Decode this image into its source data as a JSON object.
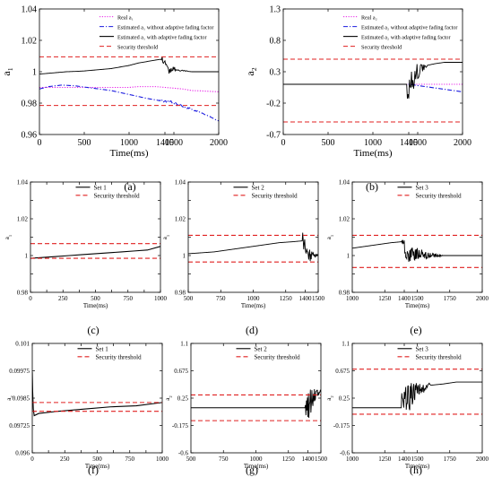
{
  "chart_data": [
    {
      "id": "a",
      "type": "line",
      "caption": "(a)",
      "xlabel": "Time(ms)",
      "ylabel": "a",
      "ylabel_sub": "1",
      "xlim": [
        0,
        2000
      ],
      "ylim": [
        0.96,
        1.04
      ],
      "xticks": [
        0,
        500,
        1000,
        1400,
        1500,
        2000
      ],
      "xtick_labels": [
        "0",
        "500",
        "1000",
        "1400",
        "1500",
        "2000"
      ],
      "yticks": [
        0.96,
        0.98,
        1,
        1.02,
        1.04
      ],
      "ytick_labels": [
        "0.96",
        "0.98",
        "1",
        "1.02",
        "1.04"
      ],
      "legend_position": "top-right",
      "series": [
        {
          "name": "Real a₁",
          "color": "#e81ee8",
          "style": "dotted",
          "x": [
            0,
            1000,
            1100,
            1200,
            1300,
            1400,
            1500,
            1600,
            1700,
            1800,
            1900,
            2000
          ],
          "y": [
            0.99,
            0.99,
            0.9905,
            0.9905,
            0.9905,
            0.99,
            0.9895,
            0.989,
            0.988,
            0.9878,
            0.9875,
            0.9872
          ]
        },
        {
          "name": "Estimated a₁ without adaptive fading factor",
          "color": "#1a1adf",
          "style": "dashdot",
          "noise": 0.001,
          "noise_from": 1350,
          "x": [
            0,
            100,
            250,
            400,
            600,
            800,
            1000,
            1200,
            1400,
            1450,
            1500,
            1600,
            1700,
            1800,
            1900,
            2000
          ],
          "y": [
            0.989,
            0.9905,
            0.9915,
            0.991,
            0.9895,
            0.988,
            0.9855,
            0.983,
            0.981,
            0.9815,
            0.98,
            0.978,
            0.976,
            0.974,
            0.9715,
            0.9685
          ]
        },
        {
          "name": "Estimated a₁ with adaptive fading factor",
          "color": "#000000",
          "style": "solid",
          "noise": 0.0025,
          "noise_from": 1360,
          "noise_to": 1650,
          "x": [
            0,
            100,
            200,
            300,
            400,
            500,
            600,
            700,
            800,
            900,
            1000,
            1100,
            1200,
            1300,
            1360,
            1400,
            1440,
            1500,
            1600,
            1700,
            1800,
            1900,
            2000
          ],
          "y": [
            0.9985,
            0.999,
            0.9995,
            1.0,
            1.0002,
            1.0005,
            1.001,
            1.0015,
            1.002,
            1.003,
            1.004,
            1.0055,
            1.0065,
            1.0075,
            1.008,
            1.0075,
            1.0,
            1.002,
            1.0005,
            1.0,
            1.0,
            1.0,
            1.0
          ]
        },
        {
          "name": "Security threshold",
          "color": "#e02020",
          "style": "dashed",
          "x": [
            0,
            2000
          ],
          "y": [
            1.0095,
            1.0095
          ]
        },
        {
          "name": "",
          "color": "#e02020",
          "style": "dashed",
          "x": [
            0,
            2000
          ],
          "y": [
            0.9785,
            0.9785
          ]
        }
      ]
    },
    {
      "id": "b",
      "type": "line",
      "caption": "(b)",
      "xlabel": "Time(ms)",
      "ylabel": "a",
      "ylabel_sub": "2",
      "xlim": [
        0,
        2000
      ],
      "ylim": [
        -0.7,
        1.3
      ],
      "xticks": [
        0,
        500,
        1000,
        1400,
        1500,
        2000
      ],
      "xtick_labels": [
        "0",
        "500",
        "1000",
        "1400",
        "1500",
        "2000"
      ],
      "yticks": [
        -0.7,
        -0.2,
        0.3,
        0.8,
        1.3
      ],
      "ytick_labels": [
        "-0.7",
        "-0.2",
        "0.3",
        "0.8",
        "1.3"
      ],
      "legend_position": "top-right",
      "series": [
        {
          "name": "Real a₂",
          "color": "#e81ee8",
          "style": "dotted",
          "x": [
            0,
            2000
          ],
          "y": [
            0.1,
            0.1
          ]
        },
        {
          "name": "Estimated a₂ without adaptive fading factor",
          "color": "#1a1adf",
          "style": "dashdot",
          "x": [
            0,
            1000,
            1400,
            1500,
            1600,
            1700,
            1800,
            1900,
            2000
          ],
          "y": [
            0.1,
            0.1,
            0.1,
            0.08,
            0.06,
            0.04,
            0.02,
            0.0,
            -0.02
          ]
        },
        {
          "name": "Estimated a₂ with adaptive fading factor",
          "color": "#000000",
          "style": "solid",
          "noise": 0.3,
          "noise_from": 1380,
          "noise_to": 1600,
          "x": [
            0,
            1380,
            1450,
            1500,
            1550,
            1600,
            1700,
            1800,
            2000
          ],
          "y": [
            0.1,
            0.1,
            0.2,
            0.3,
            0.35,
            0.4,
            0.43,
            0.45,
            0.45
          ]
        },
        {
          "name": "Security threshold",
          "color": "#e02020",
          "style": "dashed",
          "x": [
            0,
            2000
          ],
          "y": [
            0.5,
            0.5
          ]
        },
        {
          "name": "",
          "color": "#e02020",
          "style": "dashed",
          "x": [
            0,
            2000
          ],
          "y": [
            -0.5,
            -0.5
          ]
        }
      ]
    },
    {
      "id": "c",
      "type": "line",
      "caption": "(c)",
      "xlabel": "Time(ms)",
      "ylabel": "a",
      "ylabel_sub": "1",
      "xlim": [
        0,
        1000
      ],
      "ylim": [
        0.98,
        1.04
      ],
      "xticks": [
        0,
        125,
        250,
        375,
        500,
        625,
        750,
        875,
        1000
      ],
      "xtick_labels": [
        "0",
        "",
        "250",
        "",
        "500",
        "",
        "750",
        "",
        "1000"
      ],
      "yticks": [
        0.98,
        0.99,
        1,
        1.01,
        1.02,
        1.03,
        1.04
      ],
      "ytick_labels": [
        "0.98",
        "",
        "1",
        "",
        "1.02",
        "",
        "1.04"
      ],
      "legend_position": "top-center",
      "series": [
        {
          "name": "Set 1",
          "color": "#000000",
          "style": "solid",
          "x": [
            0,
            100,
            200,
            300,
            400,
            500,
            600,
            700,
            800,
            900,
            1000
          ],
          "y": [
            0.9985,
            0.999,
            0.9995,
            1.0,
            1.0005,
            1.001,
            1.0015,
            1.002,
            1.0025,
            1.003,
            1.005
          ]
        },
        {
          "name": "Security threshold",
          "color": "#e02020",
          "style": "dashed",
          "x": [
            0,
            1000
          ],
          "y": [
            1.0065,
            1.0065
          ]
        },
        {
          "name": "",
          "color": "#e02020",
          "style": "dashed",
          "x": [
            0,
            1000
          ],
          "y": [
            0.9985,
            0.9985
          ]
        }
      ]
    },
    {
      "id": "d",
      "type": "line",
      "caption": "(d)",
      "xlabel": "Time(ms)",
      "ylabel": "a",
      "ylabel_sub": "1",
      "xlim": [
        500,
        1500
      ],
      "ylim": [
        0.98,
        1.04
      ],
      "xticks": [
        500,
        750,
        1000,
        1250,
        1400,
        1500
      ],
      "xtick_labels": [
        "500",
        "750",
        "1000",
        "1250",
        "1400",
        "1500"
      ],
      "yticks": [
        0.98,
        0.99,
        1,
        1.01,
        1.02,
        1.03,
        1.04
      ],
      "ytick_labels": [
        "0.98",
        "",
        "1",
        "",
        "1.02",
        "",
        "1.04"
      ],
      "legend_position": "top-center",
      "series": [
        {
          "name": "Set 2",
          "color": "#000000",
          "style": "solid",
          "noise": 0.006,
          "noise_from": 1380,
          "noise_to": 1500,
          "x": [
            500,
            600,
            700,
            800,
            900,
            1000,
            1100,
            1200,
            1300,
            1380,
            1420,
            1460,
            1500
          ],
          "y": [
            1.001,
            1.0015,
            1.002,
            1.003,
            1.004,
            1.005,
            1.006,
            1.007,
            1.0075,
            1.008,
            1.0,
            1.0,
            1.0
          ]
        },
        {
          "name": "Security threshold",
          "color": "#e02020",
          "style": "dashed",
          "x": [
            500,
            1500
          ],
          "y": [
            1.011,
            1.011
          ]
        },
        {
          "name": "",
          "color": "#e02020",
          "style": "dashed",
          "x": [
            500,
            1500
          ],
          "y": [
            0.9965,
            0.9965
          ]
        }
      ]
    },
    {
      "id": "e",
      "type": "line",
      "caption": "(e)",
      "xlabel": "Time(ms)",
      "ylabel": "a",
      "ylabel_sub": "1",
      "xlim": [
        1000,
        2000
      ],
      "ylim": [
        0.98,
        1.04
      ],
      "xticks": [
        1000,
        1250,
        1400,
        1500,
        1750,
        2000
      ],
      "xtick_labels": [
        "1000",
        "1250",
        "1400",
        "1500",
        "1750",
        "2000"
      ],
      "yticks": [
        0.98,
        0.99,
        1,
        1.01,
        1.02,
        1.03,
        1.04
      ],
      "ytick_labels": [
        "0.98",
        "",
        "1",
        "",
        "1.02",
        "",
        "1.04"
      ],
      "legend_position": "top-center",
      "series": [
        {
          "name": "Set 3",
          "color": "#000000",
          "style": "solid",
          "noise": 0.005,
          "noise_from": 1380,
          "noise_to": 1700,
          "x": [
            1000,
            1100,
            1200,
            1300,
            1380,
            1420,
            1500,
            1600,
            1700,
            1800,
            2000
          ],
          "y": [
            1.004,
            1.005,
            1.006,
            1.007,
            1.0075,
            1.0,
            1.001,
            1.0,
            1.0,
            1.0,
            1.0
          ]
        },
        {
          "name": "Security threshold",
          "color": "#e02020",
          "style": "dashed",
          "x": [
            1000,
            2000
          ],
          "y": [
            1.011,
            1.011
          ]
        },
        {
          "name": "",
          "color": "#e02020",
          "style": "dashed",
          "x": [
            1000,
            2000
          ],
          "y": [
            0.9935,
            0.9935
          ]
        }
      ]
    },
    {
      "id": "f",
      "type": "line",
      "caption": "(f)",
      "xlabel": "Time(ms)",
      "ylabel": "a",
      "ylabel_sub": "2",
      "xlim": [
        0,
        1000
      ],
      "ylim": [
        0.096,
        0.101
      ],
      "xticks": [
        0,
        125,
        250,
        375,
        500,
        625,
        750,
        875,
        1000
      ],
      "xtick_labels": [
        "0",
        "",
        "250",
        "",
        "500",
        "",
        "750",
        "",
        "1000"
      ],
      "yticks": [
        0.096,
        0.09725,
        0.0985,
        0.09975,
        0.101
      ],
      "ytick_labels": [
        "0.096",
        "0.09725",
        "0.0985",
        "0.09975",
        "0.101"
      ],
      "legend_position": "top-center",
      "series": [
        {
          "name": "Set 1",
          "color": "#000000",
          "style": "solid",
          "x": [
            0,
            3,
            8,
            15,
            50,
            200,
            400,
            600,
            800,
            1000
          ],
          "y": [
            0.0997,
            0.0988,
            0.098,
            0.0977,
            0.0978,
            0.0979,
            0.098,
            0.0981,
            0.09815,
            0.0983
          ]
        },
        {
          "name": "Security threshold",
          "color": "#e02020",
          "style": "dashed",
          "x": [
            0,
            1000
          ],
          "y": [
            0.0983,
            0.0983
          ]
        },
        {
          "name": "",
          "color": "#e02020",
          "style": "dashed",
          "x": [
            0,
            1000
          ],
          "y": [
            0.0979,
            0.0979
          ]
        }
      ]
    },
    {
      "id": "g",
      "type": "line",
      "caption": "(g)",
      "xlabel": "Time(ms)",
      "ylabel": "a",
      "ylabel_sub": "2",
      "xlim": [
        500,
        1500
      ],
      "ylim": [
        -0.6,
        1.1
      ],
      "xticks": [
        500,
        750,
        1000,
        1250,
        1400,
        1500
      ],
      "xtick_labels": [
        "500",
        "750",
        "1000",
        "1250",
        "1400",
        "1500"
      ],
      "yticks": [
        -0.6,
        -0.175,
        0.25,
        0.675,
        1.1
      ],
      "ytick_labels": [
        "-0.6",
        "-0.175",
        "0.25",
        "0.675",
        "1.1"
      ],
      "legend_position": "top-center",
      "series": [
        {
          "name": "Set 2",
          "color": "#000000",
          "style": "solid",
          "noise": 0.3,
          "noise_from": 1380,
          "noise_to": 1500,
          "x": [
            500,
            1380,
            1420,
            1460,
            1500
          ],
          "y": [
            0.1,
            0.1,
            0.2,
            0.3,
            0.35
          ]
        },
        {
          "name": "Security threshold",
          "color": "#e02020",
          "style": "dashed",
          "x": [
            500,
            1500
          ],
          "y": [
            0.3,
            0.3
          ]
        },
        {
          "name": "",
          "color": "#e02020",
          "style": "dashed",
          "x": [
            500,
            1500
          ],
          "y": [
            -0.1,
            -0.1
          ]
        }
      ]
    },
    {
      "id": "h",
      "type": "line",
      "caption": "(h)",
      "xlabel": "Time(ms)",
      "ylabel": "a",
      "ylabel_sub": "2",
      "xlim": [
        1000,
        2000
      ],
      "ylim": [
        -0.6,
        1.1
      ],
      "xticks": [
        1000,
        1250,
        1400,
        1500,
        1750,
        2000
      ],
      "xtick_labels": [
        "1000",
        "1250",
        "1400",
        "1500",
        "1750",
        "2000"
      ],
      "yticks": [
        -0.6,
        -0.175,
        0.25,
        0.675,
        1.1
      ],
      "ytick_labels": [
        "-0.6",
        "-0.175",
        "0.25",
        "0.675",
        "1.1"
      ],
      "legend_position": "top-center",
      "series": [
        {
          "name": "Set 3",
          "color": "#000000",
          "style": "solid",
          "noise": 0.3,
          "noise_from": 1380,
          "noise_to": 1600,
          "x": [
            1000,
            1380,
            1420,
            1500,
            1550,
            1600,
            1700,
            1800,
            2000
          ],
          "y": [
            0.1,
            0.1,
            0.25,
            0.35,
            0.4,
            0.45,
            0.47,
            0.5,
            0.5
          ]
        },
        {
          "name": "Security threshold",
          "color": "#e02020",
          "style": "dashed",
          "x": [
            1000,
            2000
          ],
          "y": [
            0.7,
            0.7
          ]
        },
        {
          "name": "",
          "color": "#e02020",
          "style": "dashed",
          "x": [
            1000,
            2000
          ],
          "y": [
            0.0,
            0.0
          ]
        }
      ]
    }
  ]
}
